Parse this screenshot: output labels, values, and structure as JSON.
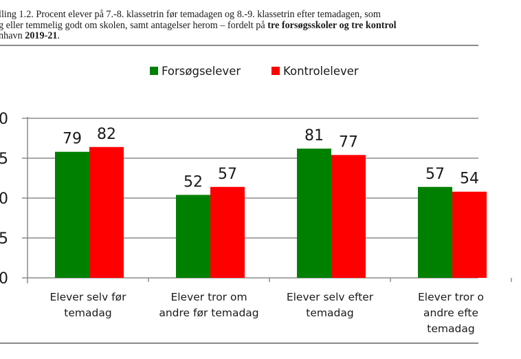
{
  "caption": {
    "line1": "lling 1.2. Procent elever på 7.-8. klassetrin før temadagen og 8.-9. klassetrin efter temadagen, som",
    "line2_plain": "g eller temmelig godt om skolen, samt antagelser herom – fordelt på ",
    "line2_bold": "tre forsøgsskoler og tre kontrol",
    "line3_plain": "nhavn ",
    "line3_bold": "2019-21",
    "line3_end": "."
  },
  "colors": {
    "series1": "#008000",
    "series2": "#ff0000",
    "grid": "#8c8c8c",
    "text": "#1a1a1a"
  },
  "chart_data": {
    "type": "bar",
    "title": "",
    "xlabel": "",
    "ylabel": "",
    "ylim": [
      0,
      100
    ],
    "yticks": [
      0,
      25,
      50,
      75,
      100
    ],
    "ytick_labels_visible": [
      "0",
      "5",
      "0",
      "5",
      "0"
    ],
    "grid": true,
    "legend_position": "top",
    "categories": [
      [
        "Elever selv før",
        "temadag"
      ],
      [
        "Elever tror om",
        "andre før temadag"
      ],
      [
        "Elever selv efter",
        "temadag"
      ],
      [
        "Elever tror o",
        "andre efte",
        "temadag"
      ]
    ],
    "series": [
      {
        "name": "Forsøgselever",
        "color": "#008000",
        "values": [
          79,
          52,
          81,
          57
        ],
        "labels": [
          "79",
          "52",
          "81",
          "57"
        ]
      },
      {
        "name": "Kontrolelever",
        "color": "#ff0000",
        "values": [
          82,
          57,
          77,
          54
        ],
        "labels": [
          "82",
          "57",
          "77",
          "54"
        ]
      }
    ]
  }
}
